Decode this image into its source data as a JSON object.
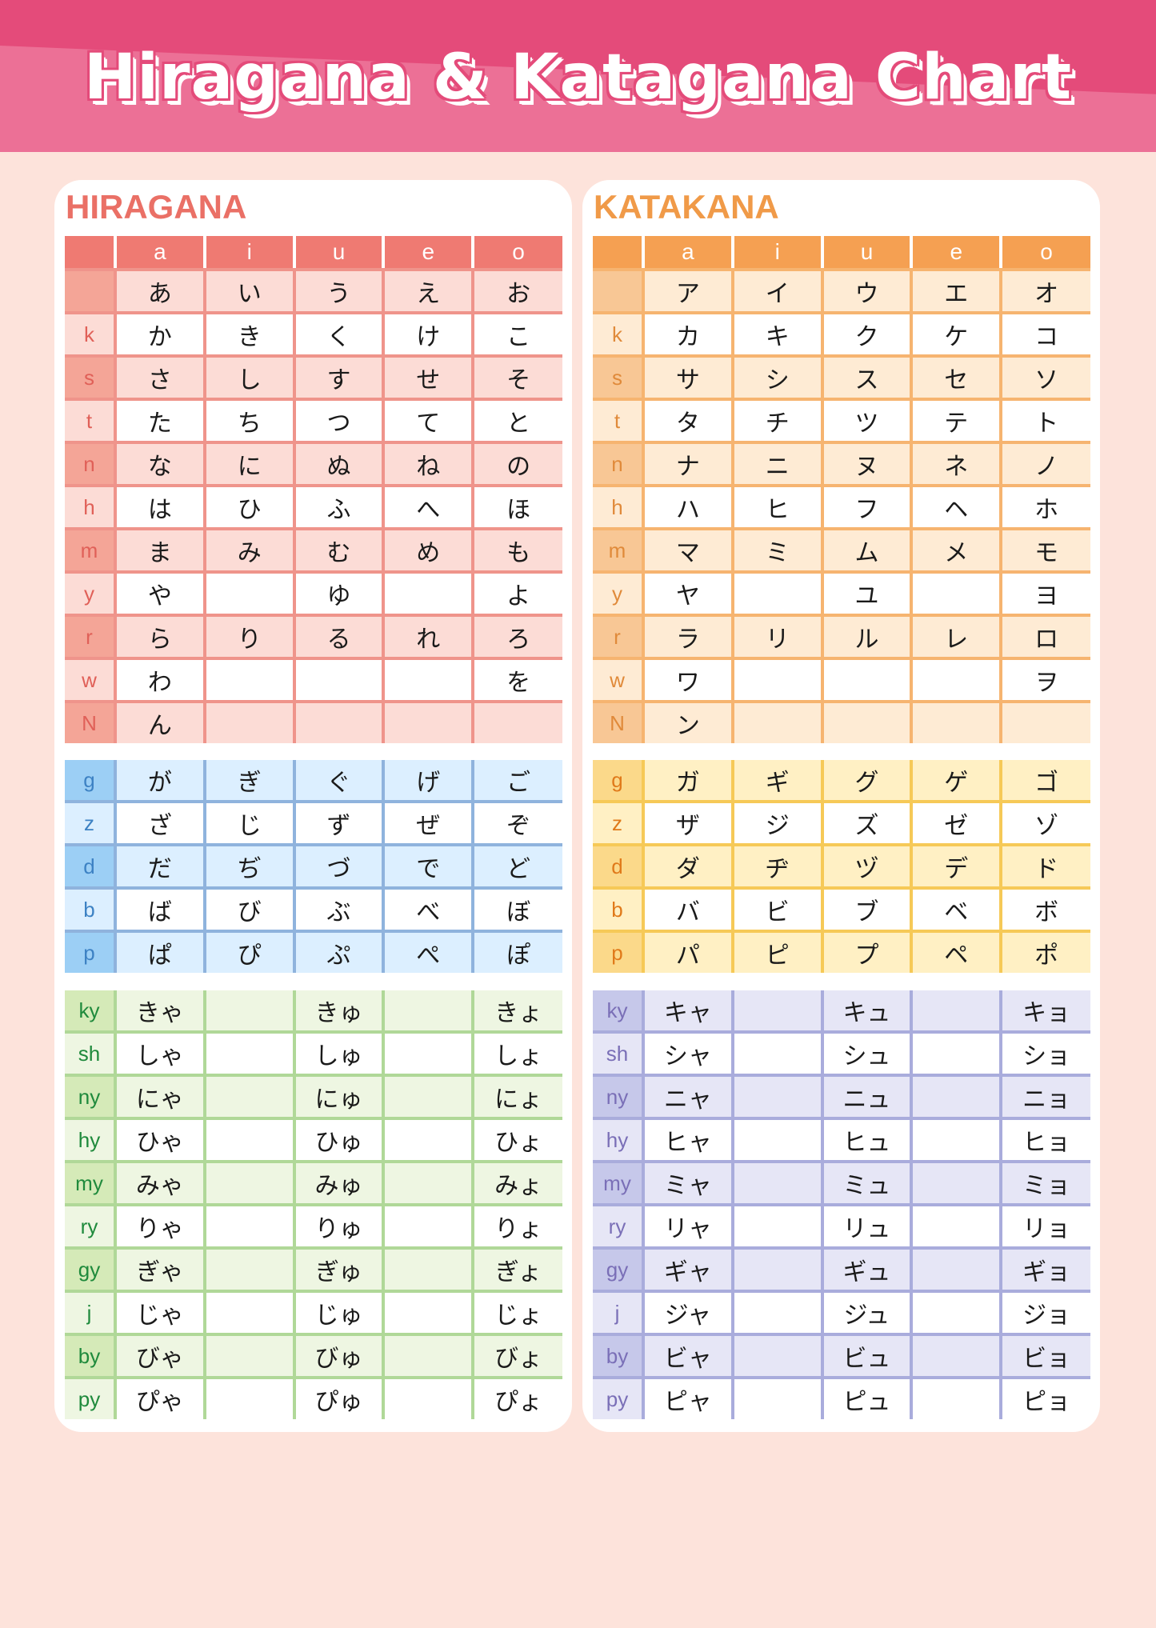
{
  "title": "Hiragana & Katagana Chart",
  "colors": {
    "banner_top": "#e44b7a",
    "banner_bottom": "#ec7096",
    "page_bg": "#fde3db",
    "hiragana": {
      "accent": "#ef7a72",
      "title": "#ea7066",
      "light": "#fcdcd6",
      "label_dark": "#f4a597",
      "line": "#ef948b",
      "label_text": "#e06058"
    },
    "katakana": {
      "accent": "#f5a052",
      "title": "#f09a48",
      "light": "#feebd4",
      "label_dark": "#f8c795",
      "line": "#f6b470",
      "label_text": "#e08a3a"
    },
    "hira_dakuten": {
      "light": "#dcefff",
      "label_dark": "#9ccff5",
      "line": "#8fb3dd",
      "label_text": "#3d82c4"
    },
    "kata_dakuten": {
      "light": "#fff0c4",
      "label_dark": "#fbd98a",
      "line": "#f6c957",
      "label_text": "#e07a1a"
    },
    "hira_yoon": {
      "light": "#eef6e2",
      "label_dark": "#d5eab8",
      "line": "#b0d898",
      "label_text": "#1f8a3c"
    },
    "kata_yoon": {
      "light": "#e6e6f6",
      "label_dark": "#c6c8ea",
      "line": "#a9acdc",
      "label_text": "#7a6fb7"
    }
  },
  "vowels": [
    "a",
    "i",
    "u",
    "e",
    "o"
  ],
  "hiragana": {
    "title": "HIRAGANA",
    "basic": [
      {
        "label": "",
        "cells": [
          "あ",
          "い",
          "う",
          "え",
          "お"
        ]
      },
      {
        "label": "k",
        "cells": [
          "か",
          "き",
          "く",
          "け",
          "こ"
        ]
      },
      {
        "label": "s",
        "cells": [
          "さ",
          "し",
          "す",
          "せ",
          "そ"
        ]
      },
      {
        "label": "t",
        "cells": [
          "た",
          "ち",
          "つ",
          "て",
          "と"
        ]
      },
      {
        "label": "n",
        "cells": [
          "な",
          "に",
          "ぬ",
          "ね",
          "の"
        ]
      },
      {
        "label": "h",
        "cells": [
          "は",
          "ひ",
          "ふ",
          "へ",
          "ほ"
        ]
      },
      {
        "label": "m",
        "cells": [
          "ま",
          "み",
          "む",
          "め",
          "も"
        ]
      },
      {
        "label": "y",
        "cells": [
          "や",
          "",
          "ゆ",
          "",
          "よ"
        ]
      },
      {
        "label": "r",
        "cells": [
          "ら",
          "り",
          "る",
          "れ",
          "ろ"
        ]
      },
      {
        "label": "w",
        "cells": [
          "わ",
          "",
          "",
          "",
          "を"
        ]
      },
      {
        "label": "N",
        "cells": [
          "ん",
          "",
          "",
          "",
          ""
        ]
      }
    ],
    "dakuten": [
      {
        "label": "g",
        "cells": [
          "が",
          "ぎ",
          "ぐ",
          "げ",
          "ご"
        ]
      },
      {
        "label": "z",
        "cells": [
          "ざ",
          "じ",
          "ず",
          "ぜ",
          "ぞ"
        ]
      },
      {
        "label": "d",
        "cells": [
          "だ",
          "ぢ",
          "づ",
          "で",
          "ど"
        ]
      },
      {
        "label": "b",
        "cells": [
          "ば",
          "び",
          "ぶ",
          "べ",
          "ぼ"
        ]
      },
      {
        "label": "p",
        "cells": [
          "ぱ",
          "ぴ",
          "ぷ",
          "ぺ",
          "ぽ"
        ]
      }
    ],
    "yoon": [
      {
        "label": "ky",
        "cells": [
          "きゃ",
          "",
          "きゅ",
          "",
          "きょ"
        ]
      },
      {
        "label": "sh",
        "cells": [
          "しゃ",
          "",
          "しゅ",
          "",
          "しょ"
        ]
      },
      {
        "label": "ny",
        "cells": [
          "にゃ",
          "",
          "にゅ",
          "",
          "にょ"
        ]
      },
      {
        "label": "hy",
        "cells": [
          "ひゃ",
          "",
          "ひゅ",
          "",
          "ひょ"
        ]
      },
      {
        "label": "my",
        "cells": [
          "みゃ",
          "",
          "みゅ",
          "",
          "みょ"
        ]
      },
      {
        "label": "ry",
        "cells": [
          "りゃ",
          "",
          "りゅ",
          "",
          "りょ"
        ]
      },
      {
        "label": "gy",
        "cells": [
          "ぎゃ",
          "",
          "ぎゅ",
          "",
          "ぎょ"
        ]
      },
      {
        "label": "j",
        "cells": [
          "じゃ",
          "",
          "じゅ",
          "",
          "じょ"
        ]
      },
      {
        "label": "by",
        "cells": [
          "びゃ",
          "",
          "びゅ",
          "",
          "びょ"
        ]
      },
      {
        "label": "py",
        "cells": [
          "ぴゃ",
          "",
          "ぴゅ",
          "",
          "ぴょ"
        ]
      }
    ]
  },
  "katakana": {
    "title": "KATAKANA",
    "basic": [
      {
        "label": "",
        "cells": [
          "ア",
          "イ",
          "ウ",
          "エ",
          "オ"
        ]
      },
      {
        "label": "k",
        "cells": [
          "カ",
          "キ",
          "ク",
          "ケ",
          "コ"
        ]
      },
      {
        "label": "s",
        "cells": [
          "サ",
          "シ",
          "ス",
          "セ",
          "ソ"
        ]
      },
      {
        "label": "t",
        "cells": [
          "タ",
          "チ",
          "ツ",
          "テ",
          "ト"
        ]
      },
      {
        "label": "n",
        "cells": [
          "ナ",
          "ニ",
          "ヌ",
          "ネ",
          "ノ"
        ]
      },
      {
        "label": "h",
        "cells": [
          "ハ",
          "ヒ",
          "フ",
          "ヘ",
          "ホ"
        ]
      },
      {
        "label": "m",
        "cells": [
          "マ",
          "ミ",
          "ム",
          "メ",
          "モ"
        ]
      },
      {
        "label": "y",
        "cells": [
          "ヤ",
          "",
          "ユ",
          "",
          "ヨ"
        ]
      },
      {
        "label": "r",
        "cells": [
          "ラ",
          "リ",
          "ル",
          "レ",
          "ロ"
        ]
      },
      {
        "label": "w",
        "cells": [
          "ワ",
          "",
          "",
          "",
          "ヲ"
        ]
      },
      {
        "label": "N",
        "cells": [
          "ン",
          "",
          "",
          "",
          ""
        ]
      }
    ],
    "dakuten": [
      {
        "label": "g",
        "cells": [
          "ガ",
          "ギ",
          "グ",
          "ゲ",
          "ゴ"
        ]
      },
      {
        "label": "z",
        "cells": [
          "ザ",
          "ジ",
          "ズ",
          "ゼ",
          "ゾ"
        ]
      },
      {
        "label": "d",
        "cells": [
          "ダ",
          "ヂ",
          "ヅ",
          "デ",
          "ド"
        ]
      },
      {
        "label": "b",
        "cells": [
          "バ",
          "ビ",
          "ブ",
          "ベ",
          "ボ"
        ]
      },
      {
        "label": "p",
        "cells": [
          "パ",
          "ピ",
          "プ",
          "ペ",
          "ポ"
        ]
      }
    ],
    "yoon": [
      {
        "label": "ky",
        "cells": [
          "キャ",
          "",
          "キュ",
          "",
          "キョ"
        ]
      },
      {
        "label": "sh",
        "cells": [
          "シャ",
          "",
          "シュ",
          "",
          "ショ"
        ]
      },
      {
        "label": "ny",
        "cells": [
          "ニャ",
          "",
          "ニュ",
          "",
          "ニョ"
        ]
      },
      {
        "label": "hy",
        "cells": [
          "ヒャ",
          "",
          "ヒュ",
          "",
          "ヒョ"
        ]
      },
      {
        "label": "my",
        "cells": [
          "ミャ",
          "",
          "ミュ",
          "",
          "ミョ"
        ]
      },
      {
        "label": "ry",
        "cells": [
          "リャ",
          "",
          "リュ",
          "",
          "リョ"
        ]
      },
      {
        "label": "gy",
        "cells": [
          "ギャ",
          "",
          "ギュ",
          "",
          "ギョ"
        ]
      },
      {
        "label": "j",
        "cells": [
          "ジャ",
          "",
          "ジュ",
          "",
          "ジョ"
        ]
      },
      {
        "label": "by",
        "cells": [
          "ビャ",
          "",
          "ビュ",
          "",
          "ビョ"
        ]
      },
      {
        "label": "py",
        "cells": [
          "ピャ",
          "",
          "ピュ",
          "",
          "ピョ"
        ]
      }
    ]
  }
}
